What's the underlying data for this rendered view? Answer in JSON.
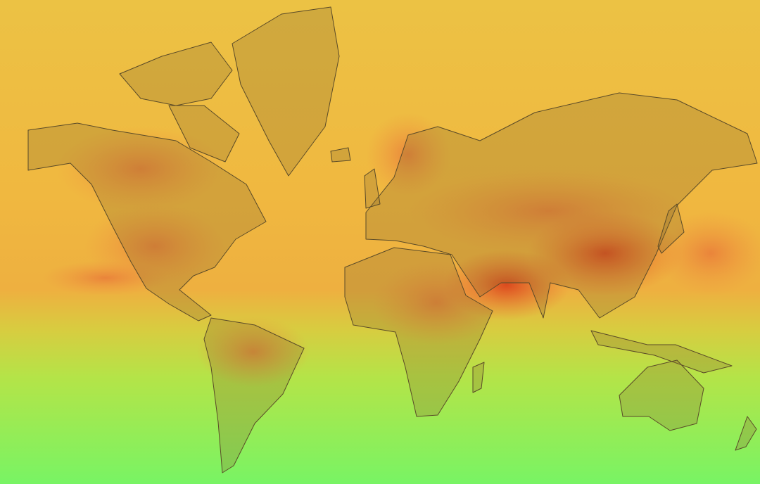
{
  "map": {
    "projection": "mercator",
    "type": "heatmap",
    "colors": {
      "cold": "#7ef060",
      "cool": "#c8dc40",
      "mild": "#ecc040",
      "warm": "#f0a040",
      "hot": "#d84020",
      "land_fill": "#8a6a30",
      "border": "#5a4a28"
    }
  }
}
